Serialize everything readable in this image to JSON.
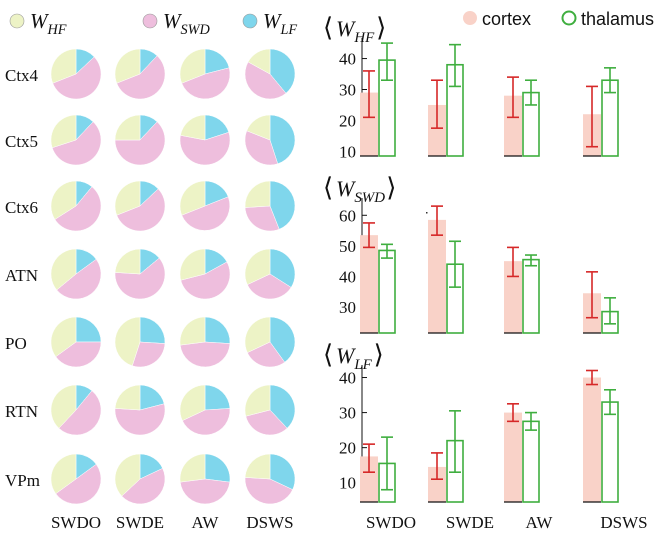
{
  "colors": {
    "hf": "#EDF3C6",
    "swd": "#EEBEDD",
    "lf": "#7FD6EC",
    "cortex_fill": "#F9D2C8",
    "cortex_err": "#D62828",
    "thalamus": "#3FAE3F"
  },
  "pie_legend": [
    {
      "sym": "W",
      "sub": "HF",
      "key": "hf"
    },
    {
      "sym": "W",
      "sub": "SWD",
      "key": "swd"
    },
    {
      "sym": "W",
      "sub": "LF",
      "key": "lf"
    }
  ],
  "bar_legend": {
    "cortex": "cortex",
    "thalamus": "thalamus"
  },
  "rows": [
    "Ctx4",
    "Ctx5",
    "Ctx6",
    "ATN",
    "PO",
    "RTN",
    "VPm"
  ],
  "states": [
    "SWDO",
    "SWDE",
    "AW",
    "DSWS"
  ],
  "chart_data": [
    {
      "type": "pie",
      "description_key": "fractions of W_HF / W_SWD / W_LF per region (rows) and state (columns)",
      "rows": [
        "Ctx4",
        "Ctx5",
        "Ctx6",
        "ATN",
        "PO",
        "RTN",
        "VPm"
      ],
      "columns": [
        "SWDO",
        "SWDE",
        "AW",
        "DSWS"
      ],
      "slice_order": [
        "LF",
        "SWD",
        "HF"
      ],
      "values": [
        [
          [
            0.13,
            0.56,
            0.31
          ],
          [
            0.12,
            0.57,
            0.31
          ],
          [
            0.21,
            0.48,
            0.31
          ],
          [
            0.39,
            0.44,
            0.17
          ]
        ],
        [
          [
            0.12,
            0.58,
            0.3
          ],
          [
            0.12,
            0.63,
            0.25
          ],
          [
            0.2,
            0.58,
            0.22
          ],
          [
            0.45,
            0.36,
            0.19
          ]
        ],
        [
          [
            0.11,
            0.55,
            0.34
          ],
          [
            0.13,
            0.56,
            0.31
          ],
          [
            0.19,
            0.5,
            0.31
          ],
          [
            0.44,
            0.3,
            0.26
          ]
        ],
        [
          [
            0.15,
            0.49,
            0.36
          ],
          [
            0.14,
            0.62,
            0.24
          ],
          [
            0.17,
            0.54,
            0.29
          ],
          [
            0.34,
            0.34,
            0.32
          ]
        ],
        [
          [
            0.25,
            0.4,
            0.35
          ],
          [
            0.26,
            0.29,
            0.45
          ],
          [
            0.26,
            0.47,
            0.27
          ],
          [
            0.4,
            0.28,
            0.32
          ]
        ],
        [
          [
            0.11,
            0.51,
            0.38
          ],
          [
            0.21,
            0.55,
            0.24
          ],
          [
            0.24,
            0.44,
            0.32
          ],
          [
            0.38,
            0.33,
            0.29
          ]
        ],
        [
          [
            0.15,
            0.5,
            0.35
          ],
          [
            0.18,
            0.45,
            0.37
          ],
          [
            0.27,
            0.46,
            0.27
          ],
          [
            0.32,
            0.44,
            0.24
          ]
        ]
      ]
    },
    {
      "type": "bar",
      "title_sym": "W",
      "title_sub": "HF",
      "categories": [
        "SWDO",
        "SWDE",
        "AW",
        "DSWS"
      ],
      "ylim": [
        8.5,
        46
      ],
      "yticks": [
        10,
        20,
        30,
        40
      ],
      "series": [
        {
          "name": "cortex",
          "values": [
            29,
            25,
            28,
            22
          ],
          "err": [
            [
              21,
              36
            ],
            [
              17.5,
              33
            ],
            [
              21,
              34
            ],
            [
              11.5,
              31
            ]
          ]
        },
        {
          "name": "thalamus",
          "values": [
            39.5,
            38,
            29,
            33
          ],
          "err": [
            [
              33,
              45
            ],
            [
              31,
              44.5
            ],
            [
              25,
              33
            ],
            [
              29,
              37
            ]
          ]
        }
      ]
    },
    {
      "type": "bar",
      "title_sym": "W",
      "title_sub": "SWD",
      "categories": [
        "SWDO",
        "SWDE",
        "AW",
        "DSWS"
      ],
      "ylim": [
        21.5,
        65
      ],
      "yticks": [
        30,
        40,
        50,
        60
      ],
      "series": [
        {
          "name": "cortex",
          "values": [
            53.5,
            58.5,
            45,
            34.5
          ],
          "err": [
            [
              49.5,
              57.5
            ],
            [
              53.5,
              63
            ],
            [
              40,
              49.5
            ],
            [
              26.5,
              41.5
            ]
          ]
        },
        {
          "name": "thalamus",
          "values": [
            48.5,
            44,
            45.5,
            28.5
          ],
          "err": [
            [
              46,
              50.5
            ],
            [
              36.5,
              51.5
            ],
            [
              43.5,
              47
            ],
            [
              24.5,
              33
            ]
          ]
        }
      ]
    },
    {
      "type": "bar",
      "title_sym": "W",
      "title_sub": "LF",
      "categories": [
        "SWDO",
        "SWDE",
        "AW",
        "DSWS"
      ],
      "ylim": [
        4.5,
        43
      ],
      "yticks": [
        10,
        20,
        30,
        40
      ],
      "series": [
        {
          "name": "cortex",
          "values": [
            17.5,
            14.5,
            30,
            40
          ],
          "err": [
            [
              13,
              21
            ],
            [
              11,
              18.5
            ],
            [
              27.5,
              32.5
            ],
            [
              38,
              42
            ]
          ]
        },
        {
          "name": "thalamus",
          "values": [
            15.5,
            22,
            27.5,
            33
          ],
          "err": [
            [
              8,
              23
            ],
            [
              13,
              30.5
            ],
            [
              25,
              30
            ],
            [
              29.5,
              36.5
            ]
          ]
        }
      ]
    }
  ]
}
